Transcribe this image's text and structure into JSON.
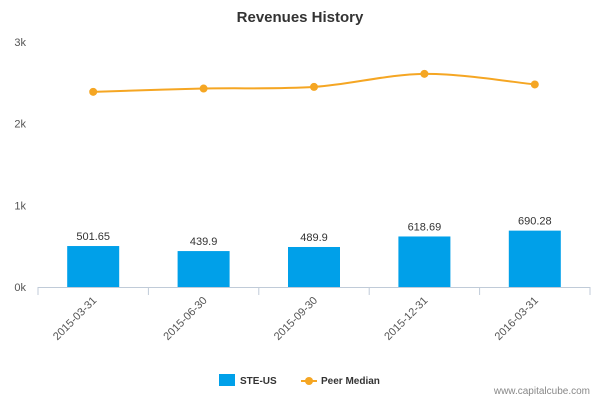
{
  "chart_data": {
    "type": "bar",
    "title": "Revenues History",
    "categories": [
      "2015-03-31",
      "2015-06-30",
      "2015-09-30",
      "2015-12-31",
      "2016-03-31"
    ],
    "series": [
      {
        "name": "STE-US",
        "type": "bar",
        "values": [
          501.65,
          439.9,
          489.9,
          618.69,
          690.28
        ],
        "data_labels": [
          "501.65",
          "439.9",
          "489.9",
          "618.69",
          "690.28"
        ],
        "color": "#00a0e9"
      },
      {
        "name": "Peer Median",
        "type": "line",
        "values": [
          2390,
          2430,
          2450,
          2610,
          2480
        ],
        "color": "#f5a623"
      }
    ],
    "ylim": [
      0,
      3000
    ],
    "yticks": [
      0,
      1000,
      2000,
      3000
    ],
    "ytick_labels": [
      "0k",
      "1k",
      "2k",
      "3k"
    ],
    "grid": false,
    "legend_position": "bottom-center"
  },
  "watermark": "www.capitalcube.com"
}
